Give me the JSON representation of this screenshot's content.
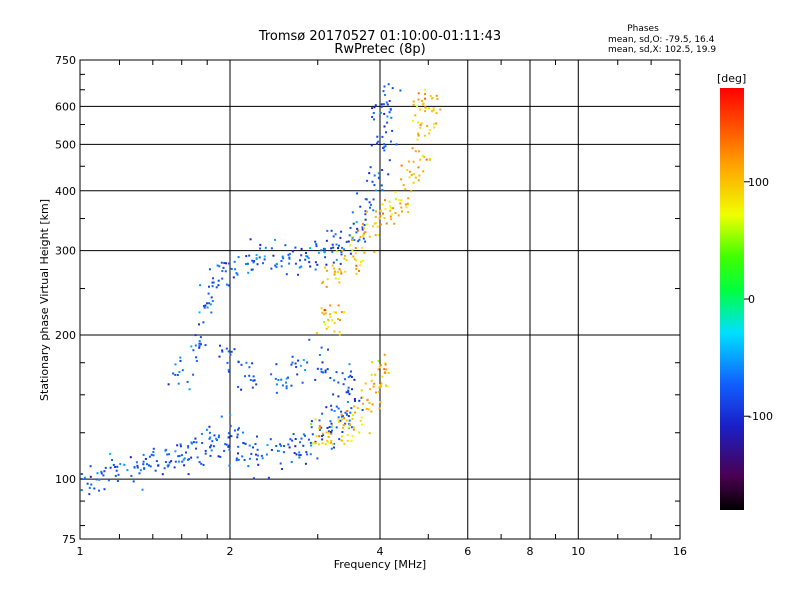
{
  "chart_data": {
    "type": "scatter",
    "title": "Tromsø 20170527 01:10:00-01:11:43",
    "subtitle": "RwPretec (8p)",
    "xlabel": "Frequency [MHz]",
    "ylabel": "Stationary phase Virtual Height [km]",
    "x_scale": "log",
    "y_scale": "log",
    "xlim": [
      1,
      16
    ],
    "ylim": [
      75,
      750
    ],
    "x_ticks": [
      "1",
      "2",
      "4",
      "6",
      "8",
      "10",
      "16"
    ],
    "x_tick_values": [
      1,
      2,
      4,
      6,
      8,
      10,
      16
    ],
    "y_ticks": [
      "75",
      "100",
      "200",
      "300",
      "400",
      "500",
      "600",
      "750"
    ],
    "y_tick_values": [
      75,
      100,
      200,
      300,
      400,
      500,
      600,
      750
    ],
    "grid": true,
    "phase_info": {
      "heading": "Phases",
      "line_o": "mean, sd,O: -79.5, 16.4",
      "line_x": "mean, sd,X: 102.5, 19.9"
    },
    "colorbar": {
      "label": "[deg]",
      "range": [
        -180,
        180
      ],
      "ticks": [
        "100",
        "0",
        "-100"
      ],
      "tick_values": [
        100,
        0,
        -100
      ]
    },
    "traces": [
      {
        "mode": "O",
        "phase_mean": -79.5,
        "phase_sd": 16.4,
        "points": [
          [
            1.0,
            100
          ],
          [
            1.1,
            102
          ],
          [
            1.2,
            104
          ],
          [
            1.3,
            106
          ],
          [
            1.4,
            108
          ],
          [
            1.5,
            110
          ],
          [
            1.6,
            112
          ],
          [
            1.7,
            114
          ],
          [
            1.8,
            117
          ],
          [
            1.9,
            122
          ],
          [
            2.0,
            127
          ],
          [
            2.1,
            113
          ],
          [
            2.3,
            113
          ],
          [
            2.5,
            115
          ],
          [
            2.7,
            116
          ],
          [
            2.9,
            119
          ],
          [
            3.1,
            123
          ],
          [
            3.3,
            130
          ],
          [
            3.5,
            140
          ],
          [
            1.6,
            165
          ],
          [
            1.7,
            190
          ],
          [
            1.8,
            230
          ],
          [
            1.9,
            260
          ],
          [
            2.0,
            280
          ],
          [
            2.2,
            290
          ],
          [
            2.4,
            290
          ],
          [
            2.6,
            285
          ],
          [
            2.8,
            290
          ],
          [
            3.0,
            300
          ],
          [
            3.2,
            305
          ],
          [
            3.4,
            315
          ],
          [
            3.6,
            330
          ],
          [
            3.8,
            370
          ],
          [
            3.9,
            430
          ],
          [
            4.0,
            500
          ],
          [
            4.05,
            580
          ],
          [
            4.1,
            620
          ],
          [
            2.0,
            180
          ],
          [
            2.2,
            165
          ],
          [
            2.5,
            160
          ],
          [
            2.8,
            175
          ],
          [
            3.1,
            170
          ],
          [
            3.3,
            140
          ],
          [
            3.4,
            160
          ]
        ]
      },
      {
        "mode": "X",
        "phase_mean": 102.5,
        "phase_sd": 19.9,
        "points": [
          [
            3.0,
            128
          ],
          [
            3.2,
            127
          ],
          [
            3.4,
            128
          ],
          [
            3.6,
            132
          ],
          [
            3.8,
            145
          ],
          [
            3.9,
            160
          ],
          [
            4.0,
            168
          ],
          [
            3.1,
            215
          ],
          [
            3.2,
            220
          ],
          [
            3.2,
            265
          ],
          [
            3.4,
            280
          ],
          [
            3.6,
            300
          ],
          [
            3.8,
            320
          ],
          [
            4.0,
            350
          ],
          [
            4.2,
            365
          ],
          [
            4.4,
            380
          ],
          [
            4.6,
            420
          ],
          [
            4.8,
            480
          ],
          [
            4.9,
            540
          ],
          [
            5.0,
            600
          ],
          [
            5.0,
            620
          ]
        ]
      }
    ]
  }
}
